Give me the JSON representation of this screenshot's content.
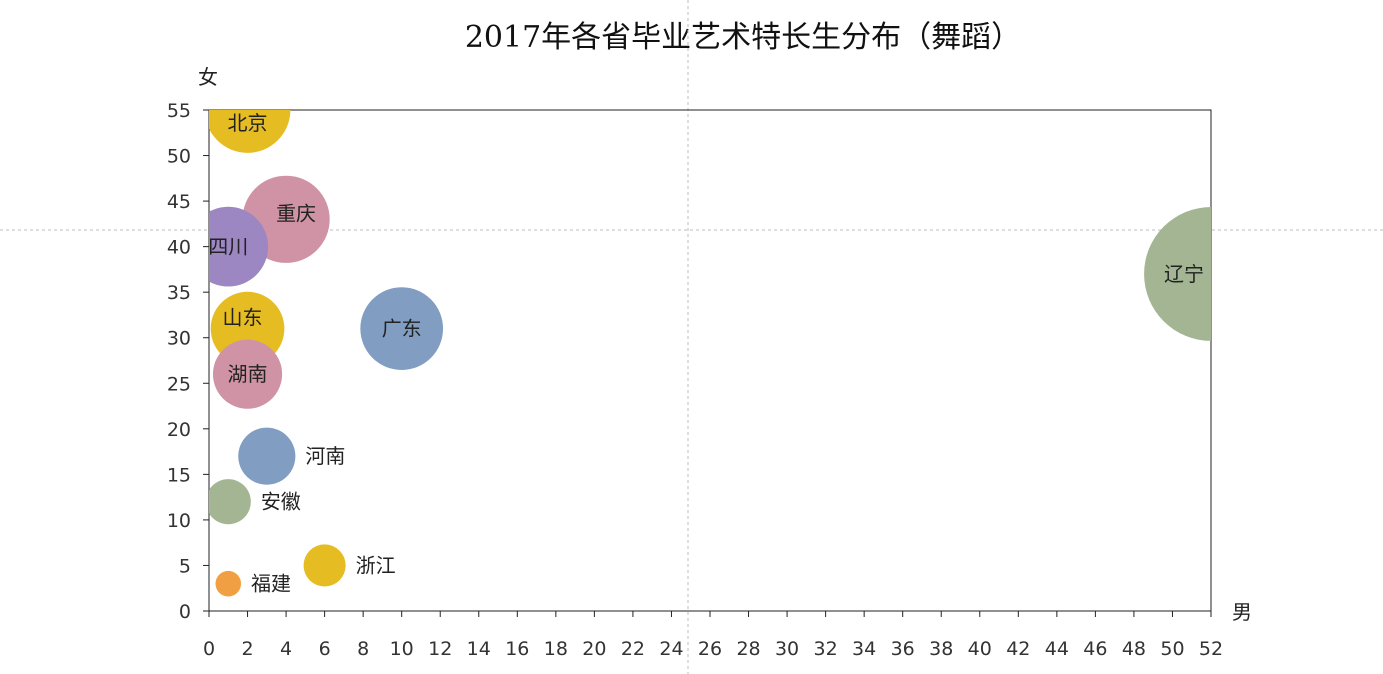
{
  "chart_data": {
    "type": "bubble",
    "title": "2017年各省毕业艺术特长生分布（舞蹈）",
    "xlabel": "男",
    "ylabel": "女",
    "xlim": [
      0,
      52
    ],
    "ylim": [
      0,
      55
    ],
    "xticks": [
      0,
      2,
      4,
      6,
      8,
      10,
      12,
      14,
      16,
      18,
      20,
      22,
      24,
      26,
      28,
      30,
      32,
      34,
      36,
      38,
      40,
      42,
      44,
      46,
      48,
      50,
      52
    ],
    "yticks": [
      0,
      5,
      10,
      15,
      20,
      25,
      30,
      35,
      40,
      45,
      50,
      55
    ],
    "points": [
      {
        "label": "北京",
        "x": 2,
        "y": 55,
        "size": 57,
        "color": "#E6BC23",
        "label_pos": "center"
      },
      {
        "label": "重庆",
        "x": 4,
        "y": 43,
        "size": 58,
        "color": "#CF93A5",
        "label_pos": "right"
      },
      {
        "label": "四川",
        "x": 1,
        "y": 40,
        "size": 53,
        "color": "#9C87C2",
        "label_pos": "center"
      },
      {
        "label": "辽宁",
        "x": 52,
        "y": 37,
        "size": 89,
        "color": "#A3B592",
        "label_pos": "left"
      },
      {
        "label": "山东",
        "x": 2,
        "y": 31,
        "size": 49,
        "color": "#E6BC23",
        "label_pos": "left"
      },
      {
        "label": "广东",
        "x": 10,
        "y": 31,
        "size": 55,
        "color": "#819EC2",
        "label_pos": "center"
      },
      {
        "label": "湖南",
        "x": 2,
        "y": 26,
        "size": 46,
        "color": "#CF93A5",
        "label_pos": "center"
      },
      {
        "label": "河南",
        "x": 3,
        "y": 17,
        "size": 38,
        "color": "#819EC2",
        "label_pos": "right"
      },
      {
        "label": "安徽",
        "x": 1,
        "y": 12,
        "size": 30,
        "color": "#A3B592",
        "label_pos": "right"
      },
      {
        "label": "浙江",
        "x": 6,
        "y": 5,
        "size": 28,
        "color": "#E6BC23",
        "label_pos": "right"
      },
      {
        "label": "福建",
        "x": 1,
        "y": 3,
        "size": 17,
        "color": "#F0A043",
        "label_pos": "right"
      }
    ]
  }
}
